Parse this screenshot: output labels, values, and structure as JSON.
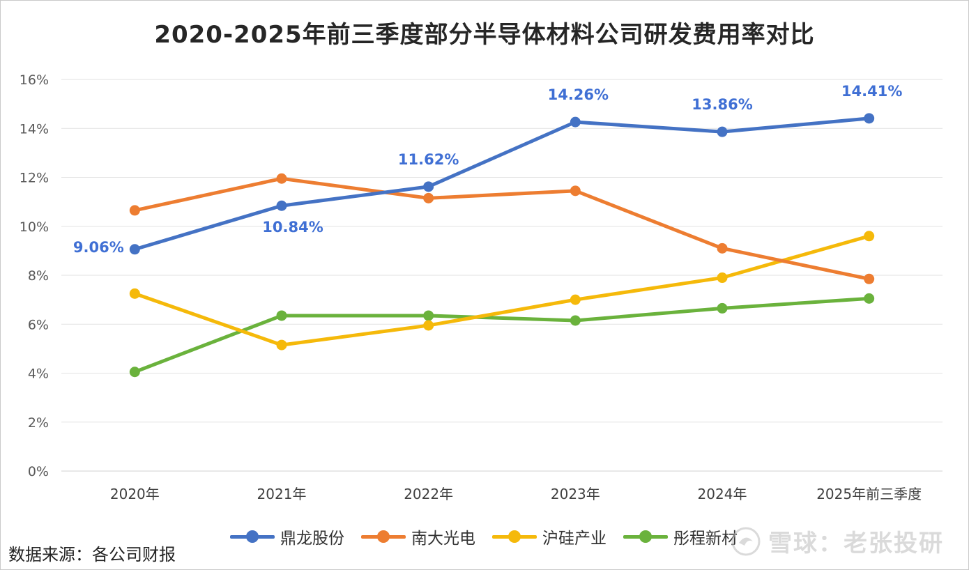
{
  "chart_data": {
    "type": "line",
    "title": "2020-2025年前三季度部分半导体材料公司研发费用率对比",
    "categories": [
      "2020年",
      "2021年",
      "2022年",
      "2023年",
      "2024年",
      "2025年前三季度"
    ],
    "y_ticks": [
      "0%",
      "2%",
      "4%",
      "6%",
      "8%",
      "10%",
      "12%",
      "14%",
      "16%"
    ],
    "ylim": [
      0,
      16
    ],
    "grid": true,
    "legend_position": "bottom",
    "series": [
      {
        "name": "鼎龙股份",
        "color": "#4472c4",
        "values": [
          9.06,
          10.84,
          11.62,
          14.26,
          13.86,
          14.41
        ],
        "data_labels": [
          "9.06%",
          "10.84%",
          "11.62%",
          "14.26%",
          "13.86%",
          "14.41%"
        ]
      },
      {
        "name": "南大光电",
        "color": "#ed7d31",
        "values": [
          10.65,
          11.95,
          11.15,
          11.45,
          9.1,
          7.85
        ]
      },
      {
        "name": "沪硅产业",
        "color": "#f5b90a",
        "values": [
          7.25,
          5.15,
          5.95,
          7.0,
          7.9,
          9.6
        ]
      },
      {
        "name": "彤程新材",
        "color": "#6ab23c",
        "values": [
          4.05,
          6.35,
          6.35,
          6.15,
          6.65,
          7.05
        ]
      }
    ]
  },
  "source_text": "数据来源：各公司财报",
  "watermark": {
    "text": "雪球：老张投研",
    "icon": "snowball-logo-icon"
  }
}
